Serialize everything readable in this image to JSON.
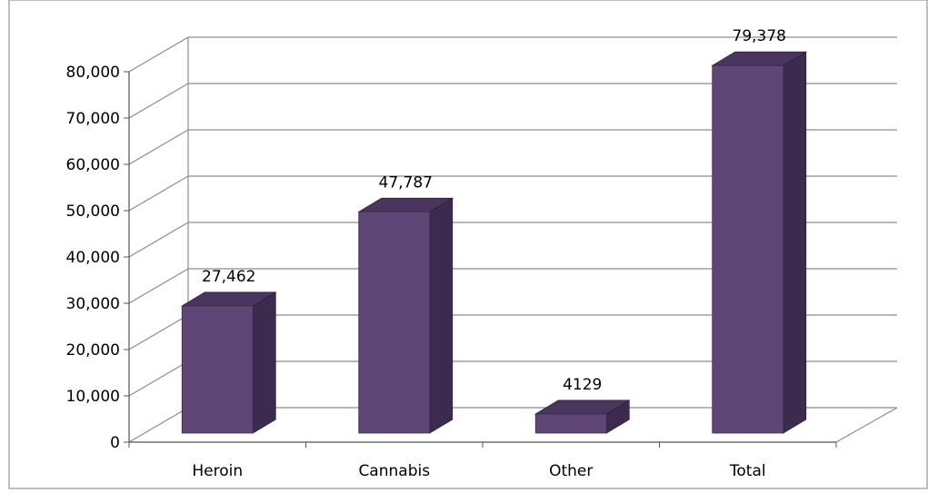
{
  "chart_data": {
    "type": "bar",
    "categories": [
      "Heroin",
      "Cannabis",
      "Other",
      "Total"
    ],
    "values": [
      27462,
      47787,
      4129,
      79378
    ],
    "data_labels": [
      "27,462",
      "47,787",
      "4129",
      "79,378"
    ],
    "y_ticks": [
      "0",
      "10,000",
      "20,000",
      "30,000",
      "40,000",
      "50,000",
      "60,000",
      "70,000",
      "80,000"
    ],
    "ylim": [
      0,
      80000
    ],
    "grid": true,
    "three_d": true,
    "legend": "none",
    "title": "",
    "xlabel": "",
    "ylabel": ""
  },
  "colors": {
    "bar_front": "#5e4677",
    "bar_side": "#3c2b4f",
    "bar_top": "#4a355f",
    "grid": "#8c8c8c",
    "frame": "#555555"
  }
}
